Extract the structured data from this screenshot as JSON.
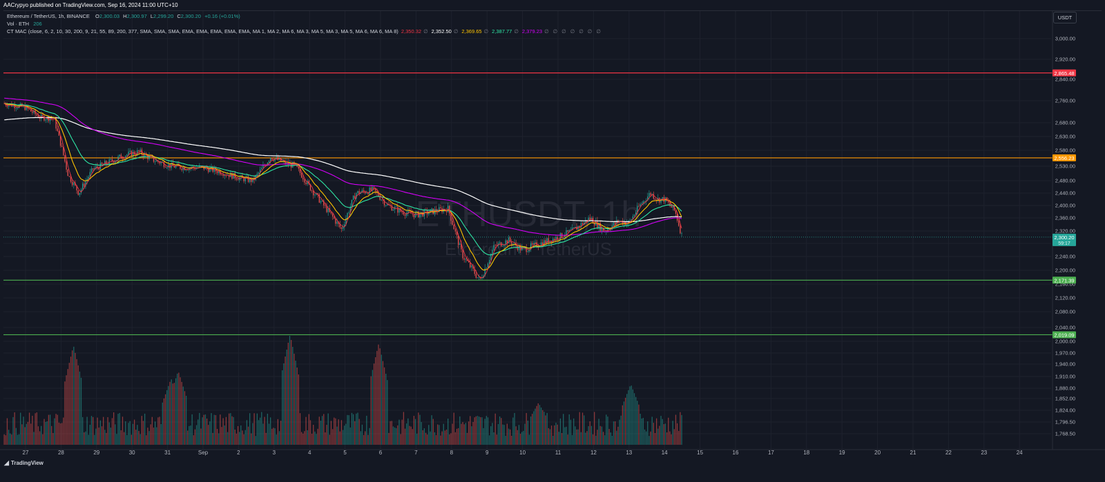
{
  "header": {
    "publisher_text": "AACrypyo published on TradingView.com, Sep 16, 2024 11:00 UTC+10",
    "currency_button": "USDT"
  },
  "legend": {
    "symbol": "Ethereum / TetherUS, 1h, BINANCE",
    "o_label": "O",
    "o": "2,300.03",
    "h_label": "H",
    "h": "2,300.97",
    "l_label": "L",
    "l": "2,299.20",
    "c_label": "C",
    "c": "2,300.20",
    "change": "+0.16 (+0.01%)",
    "vol_label": "Vol · ETH",
    "vol_value": "206",
    "indicator": "CT MAC (close, 6, 2, 10, 30, 200, 9, 21, 55, 89, 200, 377, SMA, SMA, SMA, EMA, EMA, EMA, EMA, EMA, MA 1, MA 2, MA 6, MA 3, MA 5, MA 3, MA 5, MA 6, MA 6, MA 8)",
    "ma_values": [
      {
        "value": "2,350.32",
        "color": "#f23645"
      },
      {
        "value": "2,352.50",
        "color": "#ffffff"
      },
      {
        "value": "2,369.65",
        "color": "#ffc400"
      },
      {
        "value": "2,387.77",
        "color": "#2ee6a5"
      },
      {
        "value": "2,379.23",
        "color": "#d500f9"
      }
    ],
    "empty_marker": "∅"
  },
  "watermark": {
    "symbol": "ETHUSDT, 1h",
    "name": "Ethereum / TetherUS"
  },
  "footer": {
    "logo_text": "TradingView"
  },
  "colors": {
    "background": "#141823",
    "grid": "#1e222d",
    "up": "#26a69a",
    "down": "#ef5350",
    "ma_fast": "#f23645",
    "ma_white": "#ffffff",
    "ma_yellow": "#ffc400",
    "ma_green": "#2ee6a5",
    "ma_purple": "#d500f9",
    "level_red": "#f23645",
    "level_orange": "#ff9800",
    "level_green": "#4caf50"
  },
  "chart_data": {
    "type": "candlestick",
    "title": "",
    "xlabel": "",
    "ylabel": "",
    "ylim": [
      1740,
      3032
    ],
    "grid": true,
    "x_ticks": [
      "27",
      "28",
      "29",
      "30",
      "31",
      "Sep",
      "2",
      "3",
      "4",
      "5",
      "6",
      "7",
      "8",
      "9",
      "10",
      "11",
      "12",
      "13",
      "14",
      "15",
      "16",
      "17",
      "18",
      "19",
      "20",
      "21",
      "22",
      "23",
      "24"
    ],
    "y_ticks": [
      "3,000.00",
      "2,920.00",
      "2,840.00",
      "2,760.00",
      "2,680.00",
      "2,630.00",
      "2,580.00",
      "2,530.00",
      "2,480.00",
      "2,440.00",
      "2,400.00",
      "2,360.00",
      "2,320.00",
      "2,280.00",
      "2,240.00",
      "2,200.00",
      "2,160.00",
      "2,120.00",
      "2,080.00",
      "2,040.00",
      "2,000.00",
      "1,970.00",
      "1,940.00",
      "1,910.00",
      "1,880.00",
      "1,852.00",
      "1,824.00",
      "1,796.50",
      "1,768.50"
    ],
    "horizontal_levels": [
      {
        "value": 2865.48,
        "label": "2,865.48",
        "color": "#f23645"
      },
      {
        "value": 2556.23,
        "label": "2,556.23",
        "color": "#ff9800"
      },
      {
        "value": 2171.39,
        "label": "2,171.39",
        "color": "#4caf50"
      },
      {
        "value": 2019.09,
        "label": "2,019.09",
        "color": "#4caf50"
      }
    ],
    "last_price": {
      "value": 2300.2,
      "label": "2,300.20",
      "countdown": "59:17"
    },
    "price_path_by_day": {
      "days": [
        26.0,
        27.0,
        27.4,
        27.8,
        28.2,
        28.5,
        28.9,
        29.4,
        29.8,
        30.2,
        30.6,
        31.1,
        31.5,
        32.0,
        32.5,
        33.0,
        33.4,
        33.9,
        34.3,
        34.6,
        35.0,
        35.4,
        35.9,
        36.3,
        36.8,
        37.2,
        37.6,
        38.0,
        38.4,
        38.9,
        39.3,
        39.8,
        40.2,
        40.6,
        41.0,
        41.5,
        42.0,
        42.4,
        42.9,
        43.3,
        43.7,
        44.0,
        44.3,
        44.6,
        44.8,
        45.0,
        45.3,
        45.5
      ],
      "close": [
        2760,
        2735,
        2700,
        2695,
        2500,
        2440,
        2520,
        2545,
        2565,
        2575,
        2550,
        2530,
        2525,
        2525,
        2510,
        2490,
        2480,
        2560,
        2540,
        2530,
        2460,
        2400,
        2325,
        2440,
        2450,
        2400,
        2380,
        2370,
        2380,
        2390,
        2245,
        2170,
        2270,
        2290,
        2260,
        2280,
        2300,
        2320,
        2360,
        2320,
        2350,
        2345,
        2400,
        2440,
        2420,
        2420,
        2380,
        2300
      ]
    },
    "volume_peaks": [
      {
        "day": 28.35,
        "relative": 0.9
      },
      {
        "day": 31.1,
        "relative": 0.6
      },
      {
        "day": 31.3,
        "relative": 0.67
      },
      {
        "day": 34.45,
        "relative": 1.0
      },
      {
        "day": 36.95,
        "relative": 0.92
      },
      {
        "day": 41.45,
        "relative": 0.38
      },
      {
        "day": 44.05,
        "relative": 0.55
      },
      {
        "day": 46.35,
        "relative": 0.55
      }
    ]
  }
}
